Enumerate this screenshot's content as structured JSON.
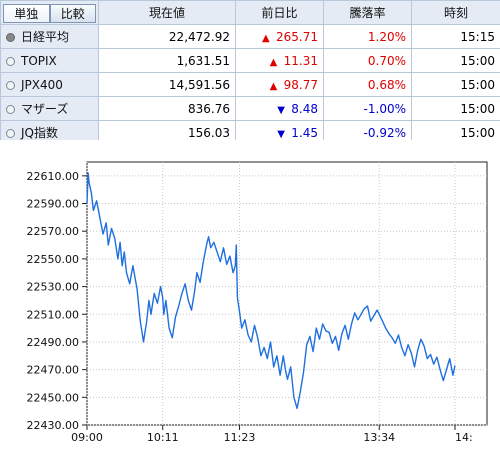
{
  "tabs": {
    "single": "単独",
    "compare": "比較"
  },
  "columns": {
    "price": "現在値",
    "change": "前日比",
    "pct": "騰落率",
    "time": "時刻"
  },
  "rows": [
    {
      "name": "日経平均",
      "price": "22,472.92",
      "dir": "up",
      "arrow": "▲",
      "change": "265.71",
      "pct": "1.20%",
      "time": "15:15",
      "selected": true
    },
    {
      "name": "TOPIX",
      "price": "1,631.51",
      "dir": "up",
      "arrow": "▲",
      "change": "11.31",
      "pct": "0.70%",
      "time": "15:00",
      "selected": false
    },
    {
      "name": "JPX400",
      "price": "14,591.56",
      "dir": "up",
      "arrow": "▲",
      "change": "98.77",
      "pct": "0.68%",
      "time": "15:00",
      "selected": false
    },
    {
      "name": "マザーズ",
      "price": "836.76",
      "dir": "dn",
      "arrow": "▼",
      "change": "8.48",
      "pct": "-1.00%",
      "time": "15:00",
      "selected": false
    },
    {
      "name": "JQ指数",
      "price": "156.03",
      "dir": "dn",
      "arrow": "▼",
      "change": "1.45",
      "pct": "-0.92%",
      "time": "15:00",
      "selected": false
    }
  ],
  "colors": {
    "up": "#e00000",
    "down": "#0000d0",
    "line": "#1e6fe0",
    "header_bg": "#e4ebf5"
  },
  "chart_data": {
    "type": "line",
    "ylim": [
      22430,
      22620
    ],
    "yticks": [
      "22610.00",
      "22590.00",
      "22570.00",
      "22550.00",
      "22530.00",
      "22510.00",
      "22490.00",
      "22470.00",
      "22450.00",
      "22430.00"
    ],
    "ytick_values": [
      22610,
      22590,
      22570,
      22550,
      22530,
      22510,
      22490,
      22470,
      22450,
      22430
    ],
    "xlim": [
      540,
      915
    ],
    "xticks": [
      "09:00",
      "10:11",
      "11:23",
      "13:34",
      "14:"
    ],
    "xtick_values": [
      540,
      611,
      683,
      814,
      885
    ],
    "grid": true,
    "series": [
      {
        "x": [
          540,
          541,
          542,
          544,
          546,
          549,
          552,
          555,
          558,
          560,
          563,
          566,
          569,
          571,
          573,
          575,
          577,
          580,
          583,
          587,
          590,
          593,
          596,
          598,
          600,
          603,
          606,
          609,
          611,
          612,
          614,
          617,
          620,
          623,
          626,
          629,
          632,
          635,
          638,
          641,
          643,
          646,
          649,
          652,
          654,
          656,
          659,
          662,
          665,
          668,
          671,
          674,
          677,
          679,
          680,
          681,
          683,
          685,
          688,
          691,
          694,
          697,
          700,
          703,
          706,
          709,
          712,
          715,
          718,
          721,
          724,
          726,
          728,
          731,
          734,
          737,
          740,
          743,
          746,
          749,
          752,
          755,
          758,
          761,
          764,
          767,
          770,
          773,
          776,
          779,
          782,
          785,
          788,
          791,
          794,
          797,
          800,
          803,
          806,
          809,
          812,
          814,
          817,
          820,
          823,
          826,
          829,
          832,
          835,
          838,
          841,
          844,
          847,
          850,
          853,
          856,
          859,
          862,
          865,
          868,
          871,
          874,
          877,
          880,
          883,
          885
        ],
        "y": [
          22590,
          22612,
          22605,
          22598,
          22585,
          22592,
          22580,
          22568,
          22576,
          22560,
          22572,
          22565,
          22550,
          22562,
          22545,
          22555,
          22540,
          22532,
          22545,
          22528,
          22505,
          22490,
          22505,
          22520,
          22510,
          22525,
          22518,
          22530,
          22522,
          22510,
          22520,
          22500,
          22493,
          22508,
          22516,
          22525,
          22532,
          22520,
          22513,
          22527,
          22540,
          22533,
          22548,
          22560,
          22566,
          22558,
          22562,
          22555,
          22548,
          22558,
          22546,
          22552,
          22540,
          22545,
          22560,
          22522,
          22512,
          22500,
          22506,
          22495,
          22490,
          22502,
          22493,
          22480,
          22486,
          22478,
          22490,
          22472,
          22480,
          22466,
          22480,
          22470,
          22463,
          22472,
          22450,
          22442,
          22454,
          22468,
          22488,
          22494,
          22483,
          22500,
          22492,
          22503,
          22498,
          22497,
          22489,
          22494,
          22484,
          22496,
          22502,
          22492,
          22503,
          22511,
          22506,
          22510,
          22514,
          22516,
          22505,
          22509,
          22513,
          22510,
          22505,
          22500,
          22496,
          22493,
          22489,
          22495,
          22486,
          22480,
          22488,
          22482,
          22472,
          22484,
          22492,
          22487,
          22478,
          22481,
          22474,
          22479,
          22470,
          22462,
          22470,
          22478,
          22466,
          22473
        ]
      }
    ]
  }
}
